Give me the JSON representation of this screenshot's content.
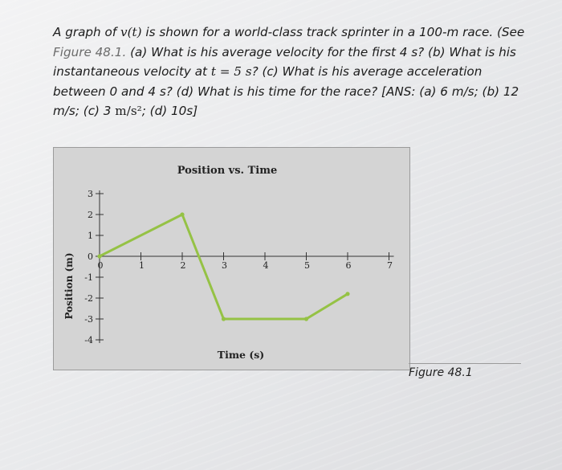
{
  "problem": {
    "part1": "A graph of ",
    "vt": "v(t)",
    "part2": " is shown for a world-class track sprinter in a 100-m race. (See ",
    "figure_ref": "Figure 48.1.",
    "part3": " (a) What is his average velocity for the first 4 s? (b) What is his instantaneous velocity at ",
    "t_eq": "t = 5 s",
    "part4": "? (c) What is his average acceleration between 0 and 4 s? (d) What is his time for the race? [ANS: (a) 6 m/s; (b) 12 m/s; (c) 3 ",
    "accel_unit": "m/s²",
    "part5": "; (d) 10s]"
  },
  "figure_caption": "Figure 48.1",
  "chart_data": {
    "type": "line",
    "title": "Position vs. Time",
    "xlabel": "Time (s)",
    "ylabel": "Position (m)",
    "xlim": [
      0,
      7
    ],
    "ylim": [
      -4,
      3
    ],
    "x_ticks": [
      "0",
      "1",
      "2",
      "3",
      "4",
      "5",
      "6",
      "7"
    ],
    "y_ticks": [
      "3",
      "2",
      "1",
      "0",
      "-1",
      "-2",
      "-3",
      "-4"
    ],
    "x": [
      0,
      2,
      3,
      5,
      6
    ],
    "y": [
      0,
      2,
      -3,
      -3,
      -1.8
    ],
    "line_color": "#95c245",
    "background": "#d4d4d4"
  }
}
